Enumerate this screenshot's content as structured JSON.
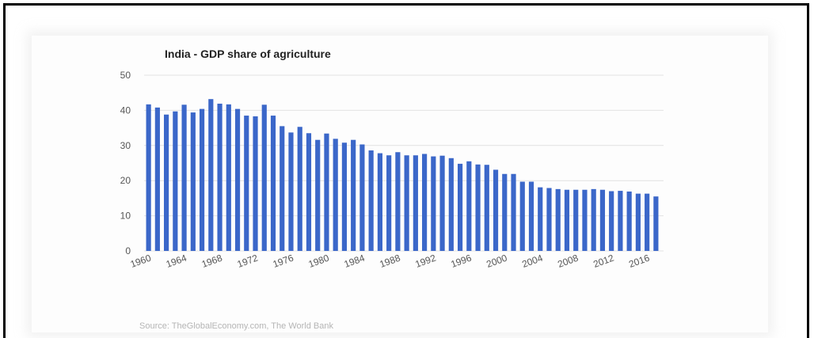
{
  "chart_data": {
    "type": "bar",
    "title": "India - GDP share of agriculture",
    "source": "Source: TheGlobalEconomy.com, The World Bank",
    "ylim": [
      0,
      50
    ],
    "yticks": [
      0,
      10,
      20,
      30,
      40,
      50
    ],
    "xtick_labels": [
      "1960",
      "1964",
      "1968",
      "1972",
      "1976",
      "1980",
      "1984",
      "1988",
      "1992",
      "1996",
      "2000",
      "2004",
      "2008",
      "2012",
      "2016"
    ],
    "grid": true,
    "bar_color": "#3b67c9",
    "categories": [
      1960,
      1961,
      1962,
      1963,
      1964,
      1965,
      1966,
      1967,
      1968,
      1969,
      1970,
      1971,
      1972,
      1973,
      1974,
      1975,
      1976,
      1977,
      1978,
      1979,
      1980,
      1981,
      1982,
      1983,
      1984,
      1985,
      1986,
      1987,
      1988,
      1989,
      1990,
      1991,
      1992,
      1993,
      1994,
      1995,
      1996,
      1997,
      1998,
      1999,
      2000,
      2001,
      2002,
      2003,
      2004,
      2005,
      2006,
      2007,
      2008,
      2009,
      2010,
      2011,
      2012,
      2013,
      2014,
      2015,
      2016,
      2017
    ],
    "values": [
      41.7,
      40.8,
      38.8,
      39.7,
      41.6,
      39.4,
      40.4,
      43.2,
      41.9,
      41.7,
      40.4,
      38.5,
      38.3,
      41.6,
      38.5,
      35.5,
      33.7,
      35.3,
      33.5,
      31.6,
      33.4,
      31.9,
      30.8,
      31.6,
      30.3,
      28.6,
      27.8,
      27.2,
      28.1,
      27.2,
      27.2,
      27.6,
      26.9,
      27.1,
      26.4,
      24.8,
      25.5,
      24.6,
      24.5,
      23.1,
      21.9,
      21.9,
      19.7,
      19.7,
      18.1,
      17.9,
      17.6,
      17.4,
      17.4,
      17.4,
      17.6,
      17.4,
      17.0,
      17.1,
      16.9,
      16.3,
      16.3,
      15.5
    ]
  }
}
